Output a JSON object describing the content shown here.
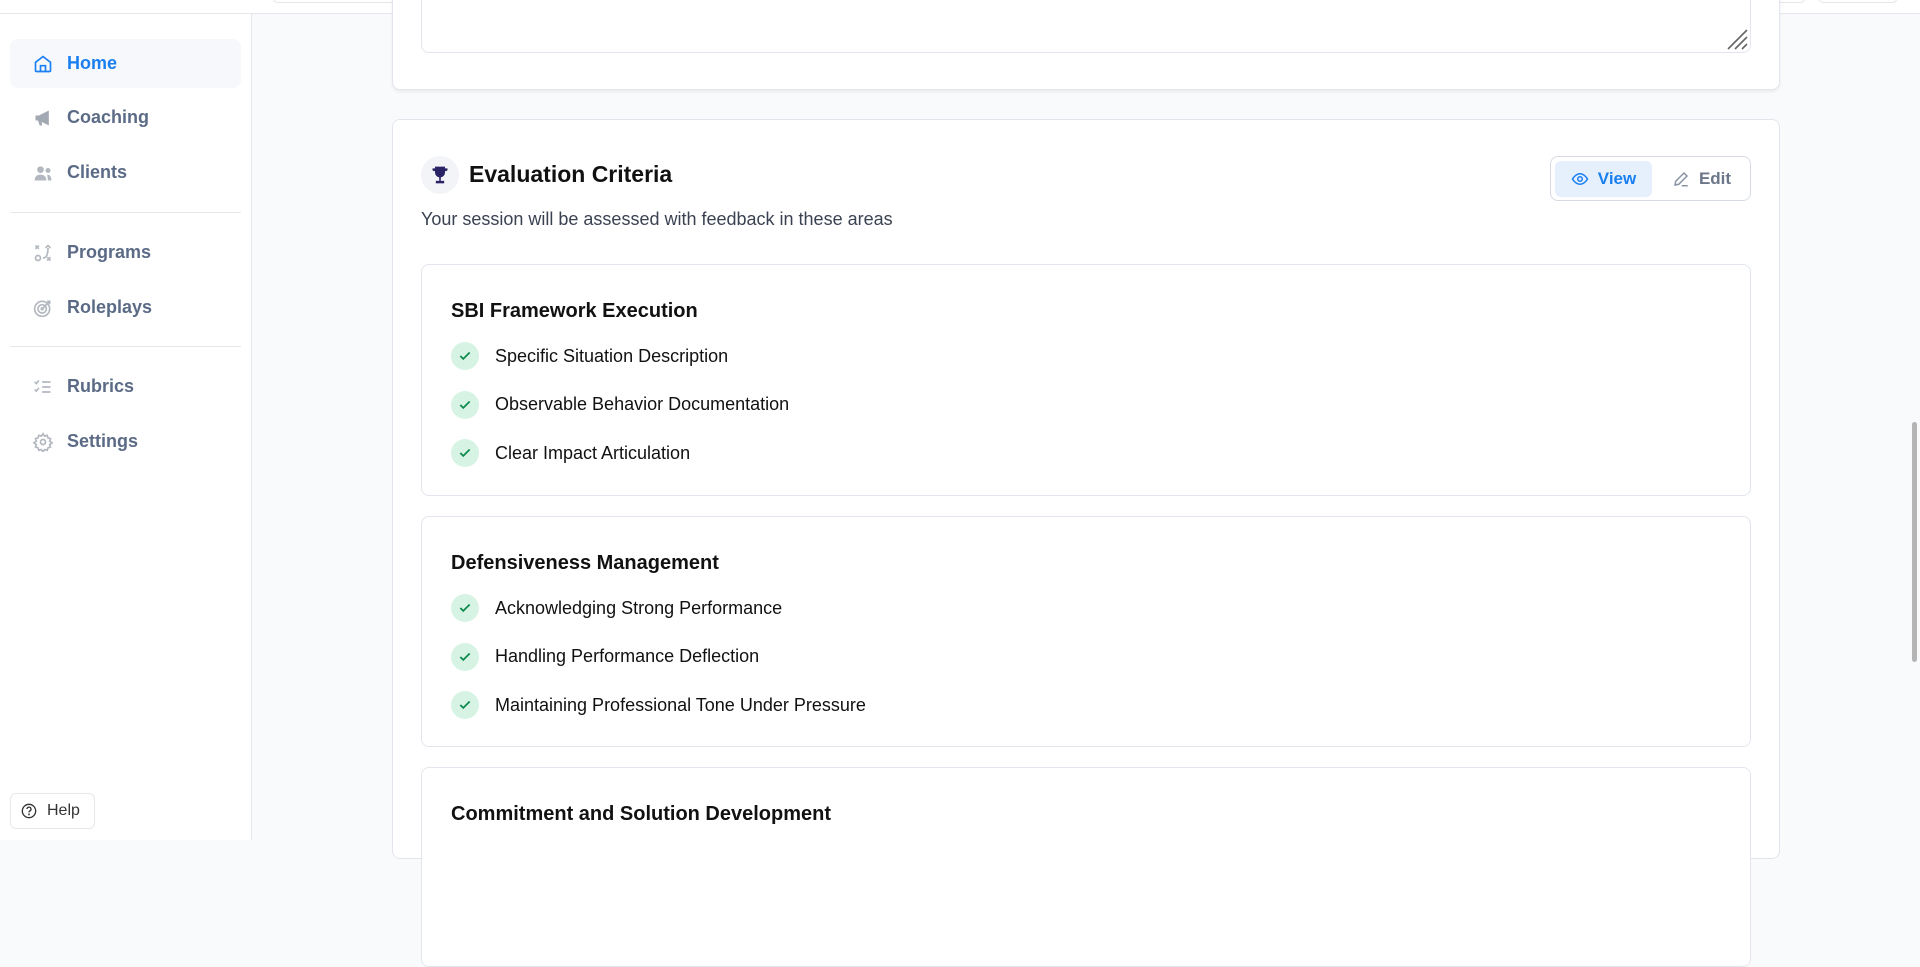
{
  "sidebar": {
    "items": [
      {
        "label": "Home",
        "icon": "home-icon",
        "active": true
      },
      {
        "label": "Coaching",
        "icon": "megaphone-icon"
      },
      {
        "label": "Clients",
        "icon": "users-icon"
      },
      {
        "label": "Programs",
        "icon": "strategy-icon"
      },
      {
        "label": "Roleplays",
        "icon": "target-icon"
      },
      {
        "label": "Rubrics",
        "icon": "checklist-icon"
      },
      {
        "label": "Settings",
        "icon": "gear-icon"
      }
    ],
    "help_label": "Help"
  },
  "evaluation": {
    "title": "Evaluation Criteria",
    "subtitle": "Your session will be assessed with feedback in these areas",
    "view_label": "View",
    "edit_label": "Edit",
    "mode": "View",
    "criteria": [
      {
        "title": "SBI Framework Execution",
        "items": [
          "Specific Situation Description",
          "Observable Behavior Documentation",
          "Clear Impact Articulation"
        ]
      },
      {
        "title": "Defensiveness Management",
        "items": [
          "Acknowledging Strong Performance",
          "Handling Performance Deflection",
          "Maintaining Professional Tone Under Pressure"
        ]
      },
      {
        "title": "Commitment and Solution Development",
        "items": []
      }
    ]
  },
  "colors": {
    "accent": "#1a7ff0",
    "check_bg": "#d6f3e4",
    "check": "#0f8a4f",
    "trophy": "#2a2466"
  }
}
